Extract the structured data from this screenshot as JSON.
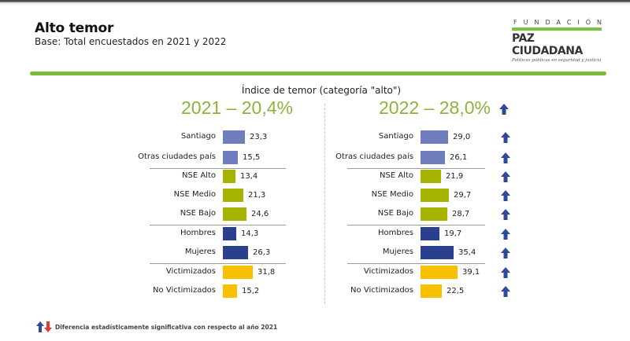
{
  "header": {
    "title": "Alto temor",
    "subtitle": "Base: Total encuestados en 2021 y 2022"
  },
  "logo": {
    "top": "FUNDACIÓN",
    "name": "PAZ CIUDADANA",
    "tagline": "Políticas públicas en seguridad y justicia"
  },
  "colors": {
    "accent_green": "#7cb83a",
    "heading_green": "#8cb43c",
    "city": "#6f7fbd",
    "nse": "#a6b400",
    "gender": "#2b3f8f",
    "victim": "#f7c000",
    "arrow_up": "#2f4a9a",
    "arrow_down": "#e53c2e"
  },
  "footnote": {
    "text": "Diferencia estadísticamente significativa con respecto al año 2021",
    "icon": "up-down-arrows-icon"
  },
  "chart_data": {
    "type": "bar",
    "orientation": "horizontal",
    "title": "Índice de temor (categoría \"alto\")",
    "categories": [
      "Santiago",
      "Otras ciudades país",
      "NSE Alto",
      "NSE Medio",
      "NSE Bajo",
      "Hombres",
      "Mujeres",
      "Victimizados",
      "No Victimizados"
    ],
    "groups": [
      "city",
      "city",
      "nse",
      "nse",
      "nse",
      "gender",
      "gender",
      "victim",
      "victim"
    ],
    "series": [
      {
        "name": "2021",
        "heading": "2021 – 20,4%",
        "total": 20.4,
        "values": [
          23.3,
          15.5,
          13.4,
          21.3,
          24.6,
          14.3,
          26.3,
          31.8,
          15.2
        ],
        "labels": [
          "23,3",
          "15,5",
          "13,4",
          "21,3",
          "24,6",
          "14,3",
          "26,3",
          "31,8",
          "15,2"
        ],
        "significant_up": [
          false,
          false,
          false,
          false,
          false,
          false,
          false,
          false,
          false
        ]
      },
      {
        "name": "2022",
        "heading": "2022 – 28,0%",
        "total": 28.0,
        "total_significant_up": true,
        "values": [
          29.0,
          26.1,
          21.9,
          29.7,
          28.7,
          19.7,
          35.4,
          39.1,
          22.5
        ],
        "labels": [
          "29,0",
          "26,1",
          "21,9",
          "29,7",
          "28,7",
          "19,7",
          "35,4",
          "39,1",
          "22,5"
        ],
        "significant_up": [
          true,
          true,
          true,
          true,
          true,
          true,
          true,
          true,
          true
        ]
      }
    ],
    "xlabel": "",
    "ylabel": "",
    "legend": "bottom-left",
    "grid": false
  }
}
